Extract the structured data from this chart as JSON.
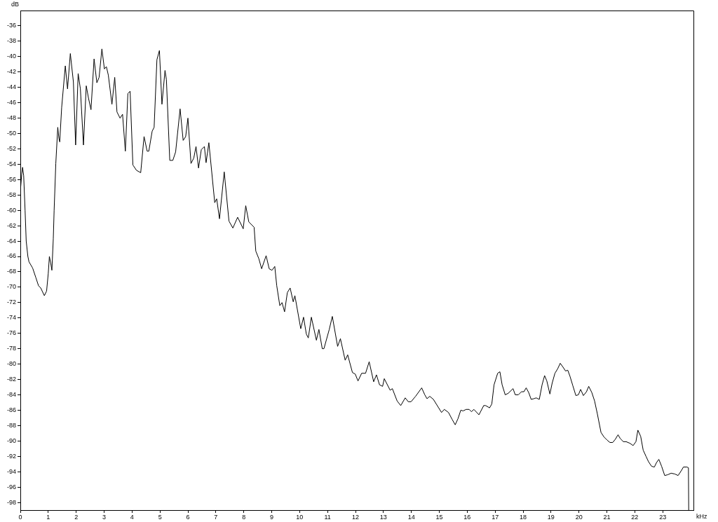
{
  "chart_data": {
    "type": "line",
    "xlabel": "kHz",
    "ylabel": "dB",
    "xlim": [
      0,
      24.1
    ],
    "ylim": [
      -99,
      -34
    ],
    "xticks": [
      0,
      1,
      2,
      3,
      4,
      5,
      6,
      7,
      8,
      9,
      10,
      11,
      12,
      13,
      14,
      15,
      16,
      17,
      18,
      19,
      20,
      21,
      22,
      23
    ],
    "yticks": [
      -36,
      -38,
      -40,
      -42,
      -44,
      -46,
      -48,
      -50,
      -52,
      -54,
      -56,
      -58,
      -60,
      -62,
      -64,
      -66,
      -68,
      -70,
      -72,
      -74,
      -76,
      -78,
      -80,
      -82,
      -84,
      -86,
      -88,
      -90,
      -92,
      -94,
      -96,
      -98
    ],
    "grid": false,
    "legend": false,
    "marker": "none",
    "line_style": "solid",
    "series": [
      {
        "color": "#000000",
        "x": [
          0,
          0.05,
          0.08,
          0.12,
          0.17,
          0.21,
          0.27,
          0.31,
          0.44,
          0.56,
          0.65,
          0.73,
          0.86,
          0.94,
          1.0,
          1.04,
          1.09,
          1.13,
          1.18,
          1.21,
          1.27,
          1.34,
          1.38,
          1.41,
          1.48,
          1.61,
          1.69,
          1.79,
          1.9,
          1.98,
          2.07,
          2.15,
          2.26,
          2.36,
          2.44,
          2.53,
          2.64,
          2.74,
          2.82,
          2.92,
          3.01,
          3.08,
          3.15,
          3.28,
          3.38,
          3.46,
          3.57,
          3.66,
          3.76,
          3.85,
          3.93,
          4.03,
          4.16,
          4.31,
          4.43,
          4.54,
          4.6,
          4.72,
          4.79,
          4.89,
          4.98,
          5.07,
          5.18,
          5.23,
          5.35,
          5.46,
          5.56,
          5.72,
          5.83,
          5.92,
          6.0,
          6.11,
          6.21,
          6.29,
          6.38,
          6.48,
          6.59,
          6.65,
          6.75,
          6.96,
          7.03,
          7.13,
          7.3,
          7.47,
          7.61,
          7.78,
          7.98,
          8.07,
          8.18,
          8.37,
          8.43,
          8.54,
          8.64,
          8.8,
          8.91,
          9.01,
          9.11,
          9.18,
          9.29,
          9.37,
          9.46,
          9.56,
          9.66,
          9.77,
          9.83,
          10.04,
          10.14,
          10.24,
          10.31,
          10.42,
          10.6,
          10.69,
          10.81,
          10.87,
          11.06,
          11.17,
          11.36,
          11.46,
          11.63,
          11.72,
          11.89,
          11.99,
          12.09,
          12.22,
          12.36,
          12.49,
          12.65,
          12.75,
          12.86,
          12.97,
          13.03,
          13.24,
          13.32,
          13.49,
          13.62,
          13.78,
          13.89,
          13.99,
          14.15,
          14.37,
          14.48,
          14.56,
          14.66,
          14.79,
          15.08,
          15.18,
          15.33,
          15.46,
          15.57,
          15.67,
          15.77,
          15.85,
          15.96,
          16.07,
          16.15,
          16.24,
          16.42,
          16.59,
          16.66,
          16.8,
          16.88,
          16.96,
          17.09,
          17.17,
          17.25,
          17.36,
          17.47,
          17.64,
          17.72,
          17.83,
          17.94,
          18.03,
          18.11,
          18.2,
          18.29,
          18.39,
          18.47,
          18.58,
          18.68,
          18.77,
          18.85,
          18.96,
          19.04,
          19.14,
          19.24,
          19.33,
          19.43,
          19.52,
          19.6,
          19.68,
          19.78,
          19.89,
          19.98,
          20.06,
          20.16,
          20.27,
          20.35,
          20.46,
          20.56,
          20.66,
          20.79,
          20.9,
          21.01,
          21.11,
          21.21,
          21.3,
          21.4,
          21.48,
          21.59,
          21.69,
          21.82,
          21.94,
          22.04,
          22.11,
          22.21,
          22.3,
          22.4,
          22.49,
          22.6,
          22.7,
          22.78,
          22.86,
          22.96,
          23.07,
          23.18,
          23.3,
          23.43,
          23.55,
          23.66,
          23.74,
          23.87,
          23.92,
          23.93
        ],
        "values": [
          -57.5,
          -55.3,
          -54.4,
          -55.5,
          -60,
          -64,
          -66,
          -66.7,
          -67.5,
          -68.8,
          -69.8,
          -70.1,
          -71.1,
          -70.5,
          -68.2,
          -66,
          -66.9,
          -67.8,
          -63.7,
          -60,
          -53.9,
          -49.2,
          -50.6,
          -51.1,
          -46.6,
          -41.2,
          -44.2,
          -39.6,
          -43.3,
          -51.5,
          -42.2,
          -44.2,
          -51.5,
          -43.8,
          -45.4,
          -46.9,
          -40.3,
          -43.4,
          -42.7,
          -39,
          -41.6,
          -41.3,
          -42.4,
          -46.2,
          -42.7,
          -47.2,
          -48,
          -47.5,
          -52.3,
          -44.8,
          -44.5,
          -54.1,
          -54.8,
          -55.1,
          -50.4,
          -52.3,
          -52.3,
          -49.7,
          -49.2,
          -40.4,
          -39.2,
          -46.2,
          -41.8,
          -43,
          -53.5,
          -53.5,
          -52.4,
          -46.8,
          -50.9,
          -50.4,
          -48,
          -53.9,
          -53.2,
          -51.7,
          -54.5,
          -52.1,
          -51.7,
          -53.8,
          -51.2,
          -59,
          -58.5,
          -61.1,
          -55,
          -61.4,
          -62.3,
          -60.9,
          -62.4,
          -59.4,
          -61.5,
          -62.2,
          -65.3,
          -66.3,
          -67.6,
          -65.9,
          -67.6,
          -67.8,
          -67.3,
          -69.8,
          -72.4,
          -72,
          -73.2,
          -70.7,
          -70.1,
          -71.9,
          -71.1,
          -75.4,
          -73.9,
          -76.1,
          -76.6,
          -73.9,
          -76.9,
          -75.5,
          -78,
          -78,
          -75.5,
          -73.8,
          -77.7,
          -76.7,
          -79.5,
          -78.8,
          -81.1,
          -81.3,
          -82.2,
          -81.2,
          -81.2,
          -79.7,
          -82.3,
          -81.4,
          -82.7,
          -82.9,
          -81.9,
          -83.4,
          -83.2,
          -84.8,
          -85.4,
          -84.4,
          -84.9,
          -84.9,
          -84.2,
          -83.1,
          -84,
          -84.5,
          -84.2,
          -84.6,
          -86.3,
          -85.9,
          -86.3,
          -87.2,
          -87.9,
          -87.1,
          -86,
          -86.1,
          -85.9,
          -85.9,
          -86.2,
          -85.9,
          -86.6,
          -85.4,
          -85.4,
          -85.7,
          -85.2,
          -82.7,
          -81.2,
          -81,
          -82.7,
          -84,
          -83.8,
          -83.2,
          -84,
          -84,
          -83.6,
          -83.6,
          -83.1,
          -83.7,
          -84.6,
          -84.5,
          -84.4,
          -84.6,
          -82.7,
          -81.5,
          -82.2,
          -83.9,
          -82.5,
          -81.2,
          -80.6,
          -79.9,
          -80.4,
          -80.9,
          -80.8,
          -81.6,
          -82.8,
          -84.1,
          -84,
          -83.3,
          -84.1,
          -83.6,
          -82.9,
          -83.7,
          -84.8,
          -86.5,
          -88.9,
          -89.5,
          -89.9,
          -90.2,
          -90.2,
          -89.8,
          -89.2,
          -89.7,
          -90.1,
          -90.1,
          -90.3,
          -90.6,
          -90.1,
          -88.6,
          -89.4,
          -91.2,
          -92,
          -92.7,
          -93.3,
          -93.4,
          -92.8,
          -92.4,
          -93.3,
          -94.5,
          -94.4,
          -94.2,
          -94.3,
          -94.5,
          -93.9,
          -93.4,
          -93.4,
          -93.5,
          -99
        ]
      }
    ]
  }
}
